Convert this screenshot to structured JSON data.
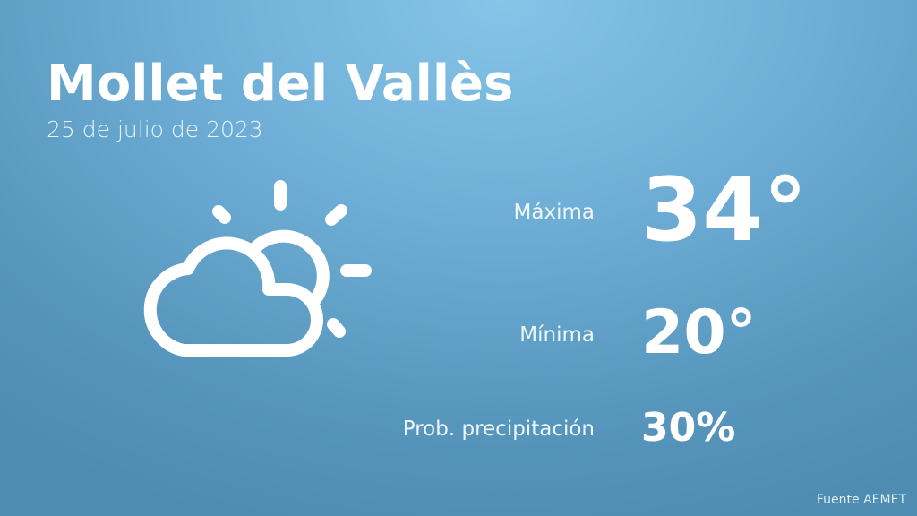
{
  "location": "Mollet del Vallès",
  "date": "25 de julio de 2023",
  "weather_icon": "partly-cloudy-icon",
  "max": {
    "label": "Máxima",
    "value": "34°"
  },
  "min": {
    "label": "Mínima",
    "value": "20°"
  },
  "precip": {
    "label": "Prob. precipitación",
    "value": "30%"
  },
  "source": "Fuente AEMET"
}
